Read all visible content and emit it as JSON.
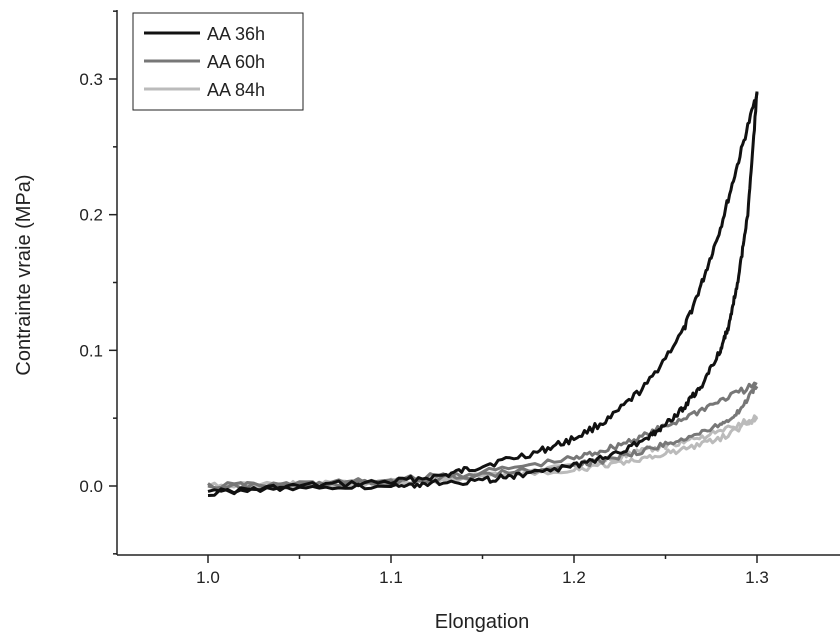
{
  "chart_data": {
    "type": "line",
    "title": "",
    "xlabel": "Elongation",
    "ylabel": "Contrainte vraie (MPa)",
    "xlim": [
      0.95,
      1.35
    ],
    "ylim": [
      -0.05,
      0.35
    ],
    "x_ticks": [
      1.0,
      1.1,
      1.2,
      1.3
    ],
    "x_tick_labels": [
      "1.0",
      "1.1",
      "1.2",
      "1.3"
    ],
    "y_ticks": [
      0.0,
      0.1,
      0.2,
      0.3
    ],
    "y_tick_labels": [
      "0.0",
      "0.1",
      "0.2",
      "0.3"
    ],
    "grid": false,
    "legend_position": "top-left",
    "series": [
      {
        "name": "AA 36h",
        "color": "#111111",
        "loading": {
          "x": [
            1.0,
            1.05,
            1.1,
            1.13,
            1.15,
            1.18,
            1.2,
            1.22,
            1.24,
            1.26,
            1.27,
            1.28,
            1.29,
            1.3
          ],
          "y": [
            -0.005,
            0.0,
            0.003,
            0.008,
            0.015,
            0.025,
            0.035,
            0.05,
            0.075,
            0.115,
            0.15,
            0.19,
            0.24,
            0.29
          ]
        },
        "unloading": {
          "x": [
            1.3,
            1.295,
            1.29,
            1.285,
            1.28,
            1.27,
            1.26,
            1.25,
            1.24,
            1.22,
            1.2,
            1.17,
            1.15,
            1.12,
            1.1,
            1.05,
            1.0
          ],
          "y": [
            0.29,
            0.2,
            0.155,
            0.12,
            0.1,
            0.075,
            0.058,
            0.045,
            0.035,
            0.022,
            0.015,
            0.008,
            0.004,
            0.002,
            0.0,
            -0.002,
            -0.004
          ]
        }
      },
      {
        "name": "AA 60h",
        "color": "#777777",
        "loading": {
          "x": [
            1.0,
            1.05,
            1.1,
            1.15,
            1.2,
            1.22,
            1.24,
            1.26,
            1.28,
            1.3
          ],
          "y": [
            0.0,
            0.001,
            0.004,
            0.01,
            0.02,
            0.028,
            0.038,
            0.05,
            0.063,
            0.075
          ]
        },
        "unloading": {
          "x": [
            1.3,
            1.29,
            1.28,
            1.26,
            1.24,
            1.22,
            1.2,
            1.15,
            1.1,
            1.05,
            1.0
          ],
          "y": [
            0.075,
            0.055,
            0.045,
            0.035,
            0.027,
            0.02,
            0.015,
            0.008,
            0.003,
            0.001,
            0.0
          ]
        }
      },
      {
        "name": "AA 84h",
        "color": "#bbbbbb",
        "loading": {
          "x": [
            1.0,
            1.05,
            1.1,
            1.15,
            1.2,
            1.22,
            1.24,
            1.26,
            1.28,
            1.3
          ],
          "y": [
            0.0,
            0.001,
            0.003,
            0.008,
            0.015,
            0.02,
            0.026,
            0.033,
            0.04,
            0.05
          ]
        },
        "unloading": {
          "x": [
            1.3,
            1.28,
            1.26,
            1.24,
            1.22,
            1.2,
            1.15,
            1.1,
            1.05,
            1.0
          ],
          "y": [
            0.05,
            0.035,
            0.027,
            0.021,
            0.016,
            0.012,
            0.006,
            0.002,
            0.0,
            0.0
          ]
        }
      }
    ]
  }
}
